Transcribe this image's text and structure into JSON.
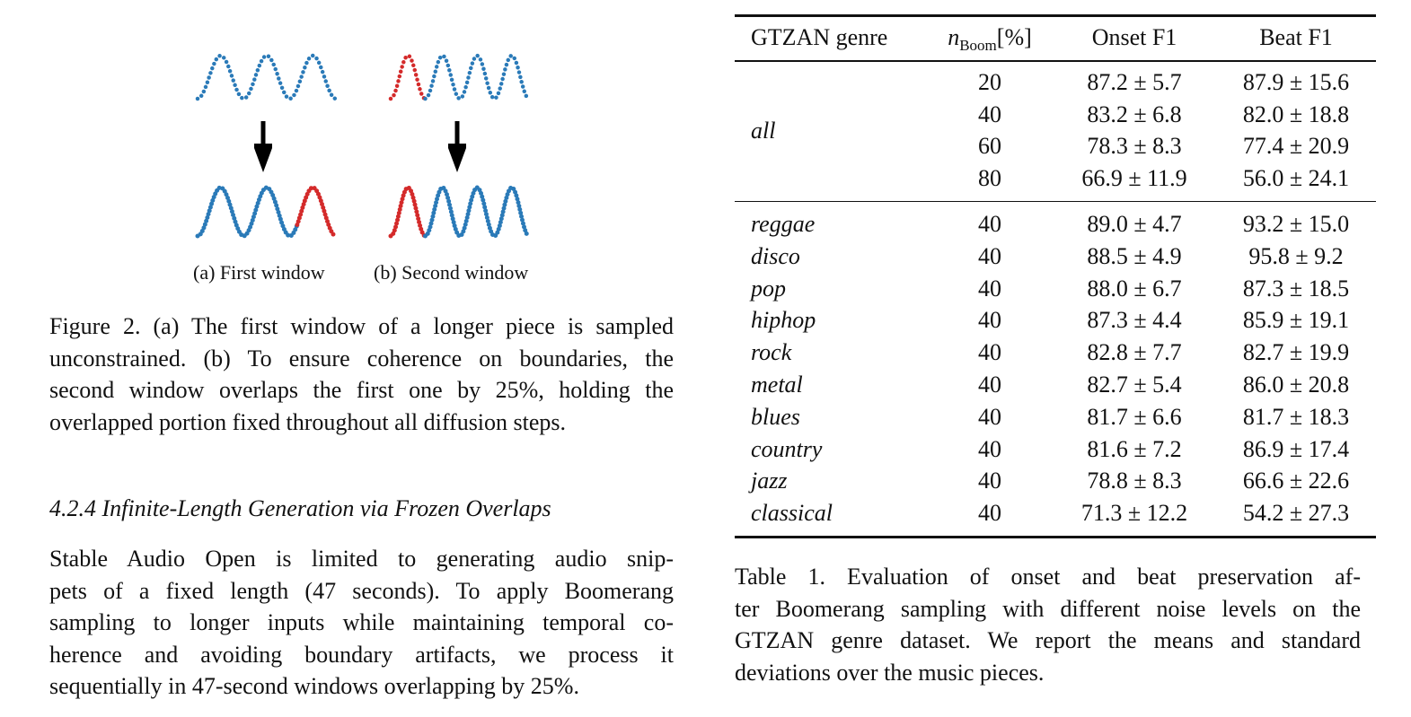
{
  "figure": {
    "subcaptions": [
      "(a) First window",
      "(b) Second window"
    ],
    "caption_lines": [
      "Figure 2. (a) The first window of a longer piece is sampled",
      "unconstrained. (b) To ensure coherence on boundaries, the",
      "second window overlaps the first one by 25%, holding the",
      "overlapped portion fixed throughout all diffusion steps."
    ]
  },
  "section": {
    "heading": "4.2.4  Infinite-Length Generation via Frozen Overlaps",
    "paragraph_lines": [
      "Stable Audio Open is limited to generating audio snip-",
      "pets of a fixed length (47 seconds). To apply Boomerang",
      "sampling to longer inputs while maintaining temporal co-",
      "herence and avoiding boundary artifacts, we process it",
      "sequentially in 47-second windows overlapping by 25%."
    ]
  },
  "table": {
    "header": {
      "genre": "GTZAN genre",
      "noise": {
        "symbol": "n",
        "subscript": "Boom",
        "unit": "[%]"
      },
      "onset": "Onset F1",
      "beat": "Beat F1"
    },
    "all": {
      "genre": "all",
      "rows": [
        [
          "20",
          "87.2 ± 5.7",
          "87.9 ± 15.6"
        ],
        [
          "40",
          "83.2 ± 6.8",
          "82.0 ± 18.8"
        ],
        [
          "60",
          "78.3 ± 8.3",
          "77.4 ± 20.9"
        ],
        [
          "80",
          "66.9 ± 11.9",
          "56.0 ± 24.1"
        ]
      ]
    },
    "rows": [
      [
        "reggae",
        "40",
        "89.0 ± 4.7",
        "93.2 ± 15.0"
      ],
      [
        "disco",
        "40",
        "88.5 ± 4.9",
        "95.8 ± 9.2"
      ],
      [
        "pop",
        "40",
        "88.0 ± 6.7",
        "87.3 ± 18.5"
      ],
      [
        "hiphop",
        "40",
        "87.3 ± 4.4",
        "85.9 ± 19.1"
      ],
      [
        "rock",
        "40",
        "82.8 ± 7.7",
        "82.7 ± 19.9"
      ],
      [
        "metal",
        "40",
        "82.7 ± 5.4",
        "86.0 ± 20.8"
      ],
      [
        "blues",
        "40",
        "81.7 ± 6.6",
        "81.7 ± 18.3"
      ],
      [
        "country",
        "40",
        "81.6 ± 7.2",
        "86.9 ± 17.4"
      ],
      [
        "jazz",
        "40",
        "78.8 ± 8.3",
        "66.6 ± 22.6"
      ],
      [
        "classical",
        "40",
        "71.3 ± 12.2",
        "54.2 ± 27.3"
      ]
    ],
    "caption_lines": [
      "Table 1.  Evaluation of onset and beat preservation af-",
      "ter Boomerang sampling with different noise levels on the",
      "GTZAN genre dataset. We report the means and standard",
      "deviations over the music pieces."
    ]
  }
}
